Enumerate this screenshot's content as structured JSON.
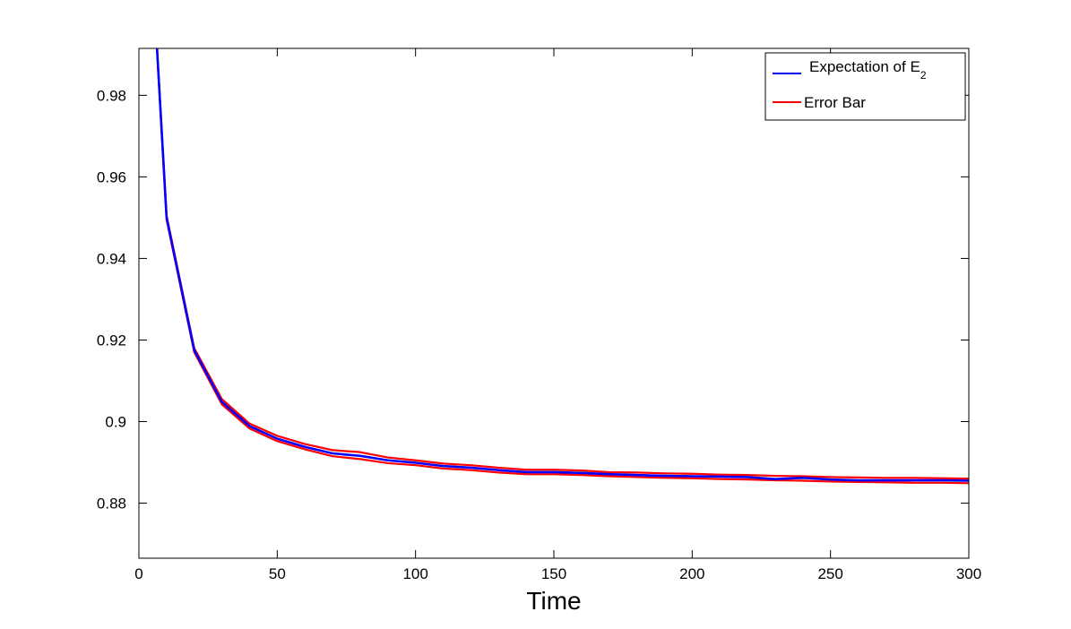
{
  "chart_data": {
    "type": "line",
    "xlabel": "Time",
    "ylabel": "",
    "xlim": [
      0,
      300
    ],
    "ylim": [
      0.8665,
      0.9915
    ],
    "xticks": [
      0,
      50,
      100,
      150,
      200,
      250,
      300
    ],
    "xtick_labels": [
      "0",
      "50",
      "100",
      "150",
      "200",
      "250",
      "300"
    ],
    "yticks": [
      0.88,
      0.9,
      0.92,
      0.94,
      0.96,
      0.98
    ],
    "ytick_labels": [
      "0.88",
      "0.9",
      "0.92",
      "0.94",
      "0.96",
      "0.98"
    ],
    "grid": false,
    "legend_position": "top-right",
    "colors": {
      "expectation": "#0000ff",
      "error_bar": "#ff0000"
    },
    "series": [
      {
        "name": "Error Bar (upper)",
        "legend_name": "Error Bar",
        "color": "#ff0000",
        "x": [
          6.5,
          10,
          20,
          30,
          40,
          50,
          60,
          70,
          80,
          90,
          100,
          110,
          120,
          130,
          140,
          150,
          160,
          170,
          180,
          190,
          200,
          210,
          220,
          230,
          240,
          250,
          260,
          270,
          280,
          290,
          300
        ],
        "y": [
          0.992,
          0.9505,
          0.918,
          0.9055,
          0.8995,
          0.8965,
          0.8945,
          0.893,
          0.8925,
          0.8912,
          0.8905,
          0.8897,
          0.8893,
          0.8887,
          0.8882,
          0.8882,
          0.888,
          0.8876,
          0.8875,
          0.8873,
          0.8872,
          0.887,
          0.8869,
          0.8867,
          0.8866,
          0.8864,
          0.8863,
          0.8862,
          0.8862,
          0.8861,
          0.886
        ]
      },
      {
        "name": "Error Bar (lower)",
        "color": "#ff0000",
        "x": [
          6.5,
          10,
          20,
          30,
          40,
          50,
          60,
          70,
          80,
          90,
          100,
          110,
          120,
          130,
          140,
          150,
          160,
          170,
          180,
          190,
          200,
          210,
          220,
          230,
          240,
          250,
          260,
          270,
          280,
          290,
          300
        ],
        "y": [
          0.992,
          0.9495,
          0.917,
          0.9042,
          0.8983,
          0.8952,
          0.8932,
          0.8915,
          0.8908,
          0.8898,
          0.8893,
          0.8885,
          0.8881,
          0.8875,
          0.8871,
          0.8871,
          0.8869,
          0.8866,
          0.8864,
          0.8862,
          0.8861,
          0.8859,
          0.8858,
          0.8856,
          0.8855,
          0.8853,
          0.8852,
          0.8851,
          0.885,
          0.885,
          0.8849
        ]
      },
      {
        "name": "Expectation of E",
        "name_subscript": "2",
        "color": "#0000ff",
        "x": [
          6.5,
          10,
          20,
          30,
          40,
          50,
          60,
          70,
          80,
          90,
          100,
          110,
          120,
          130,
          140,
          150,
          160,
          170,
          180,
          190,
          200,
          210,
          220,
          230,
          240,
          250,
          260,
          270,
          280,
          290,
          300
        ],
        "y": [
          0.992,
          0.95,
          0.9175,
          0.9048,
          0.8989,
          0.8958,
          0.8938,
          0.8922,
          0.8916,
          0.8905,
          0.8899,
          0.8891,
          0.8887,
          0.8881,
          0.8876,
          0.8876,
          0.8874,
          0.8871,
          0.8869,
          0.8867,
          0.8866,
          0.8865,
          0.8864,
          0.8859,
          0.8862,
          0.8858,
          0.8856,
          0.8856,
          0.8856,
          0.8856,
          0.8855
        ]
      }
    ]
  }
}
